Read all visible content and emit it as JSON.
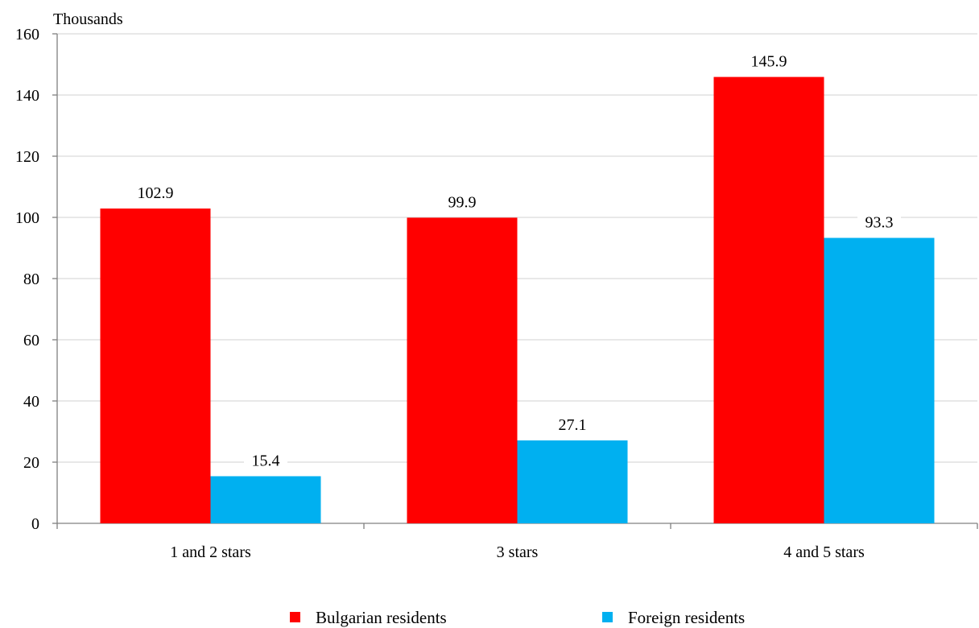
{
  "chart_data": {
    "type": "bar",
    "title": "",
    "ylabel": "Thousands",
    "xlabel": "",
    "categories": [
      "1 and 2 stars",
      "3 stars",
      "4 and 5 stars"
    ],
    "series": [
      {
        "name": "Bulgarian residents",
        "color": "#ff0000",
        "values": [
          102.9,
          99.9,
          145.9
        ],
        "labels": [
          "102.9",
          "99.9",
          "145.9"
        ]
      },
      {
        "name": "Foreign residents",
        "color": "#00b0f0",
        "values": [
          15.4,
          27.1,
          93.3
        ],
        "labels": [
          "15.4",
          "27.1",
          "93.3"
        ]
      }
    ],
    "ylim": [
      0,
      160
    ],
    "yticks": [
      0,
      20,
      40,
      60,
      80,
      100,
      120,
      140,
      160
    ],
    "ytick_labels": [
      "0",
      "20",
      "40",
      "60",
      "80",
      "100",
      "120",
      "140",
      "160"
    ],
    "grid": true,
    "legend_position": "bottom"
  }
}
